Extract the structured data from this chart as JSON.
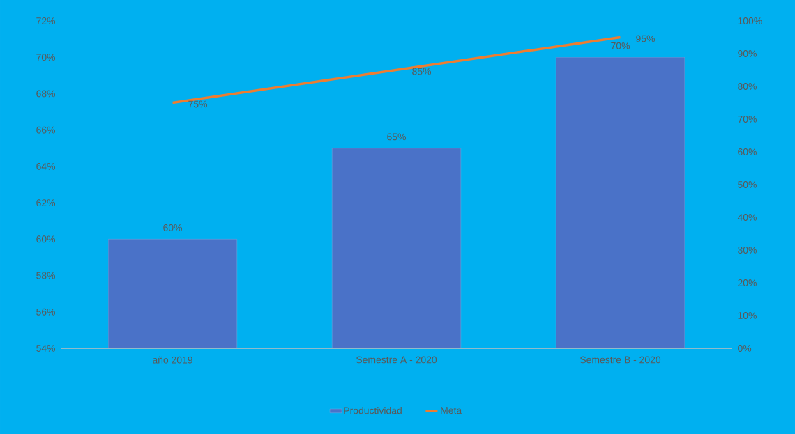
{
  "chart_data": {
    "type": "bar",
    "categories": [
      "año 2019",
      "Semestre A - 2020",
      "Semestre B - 2020"
    ],
    "series": [
      {
        "name": "Productividad",
        "color": "#4a72c8",
        "values": [
          60,
          65,
          70
        ],
        "value_labels": [
          "60%",
          "65%",
          "70%"
        ]
      },
      {
        "name": "Meta",
        "type": "line",
        "axis": "y2",
        "color": "#ed7d31",
        "values": [
          75,
          85,
          95
        ],
        "value_labels": [
          "75%",
          "85%",
          "95%"
        ]
      }
    ],
    "ylim": [
      54,
      72
    ],
    "yticks": [
      {
        "value": 54,
        "label": "54%"
      },
      {
        "value": 56,
        "label": "56%"
      },
      {
        "value": 58,
        "label": "58%"
      },
      {
        "value": 60,
        "label": "60%"
      },
      {
        "value": 62,
        "label": "62%"
      },
      {
        "value": 64,
        "label": "64%"
      },
      {
        "value": 66,
        "label": "66%"
      },
      {
        "value": 68,
        "label": "68%"
      },
      {
        "value": 70,
        "label": "70%"
      },
      {
        "value": 72,
        "label": "72%"
      }
    ],
    "y2lim": [
      0,
      100
    ],
    "y2ticks": [
      {
        "value": 0,
        "label": "0%"
      },
      {
        "value": 10,
        "label": "10%"
      },
      {
        "value": 20,
        "label": "20%"
      },
      {
        "value": 30,
        "label": "30%"
      },
      {
        "value": 40,
        "label": "40%"
      },
      {
        "value": 50,
        "label": "50%"
      },
      {
        "value": 60,
        "label": "60%"
      },
      {
        "value": 70,
        "label": "70%"
      },
      {
        "value": 80,
        "label": "80%"
      },
      {
        "value": 90,
        "label": "90%"
      },
      {
        "value": 100,
        "label": "100%"
      }
    ],
    "legend": "bottom"
  }
}
